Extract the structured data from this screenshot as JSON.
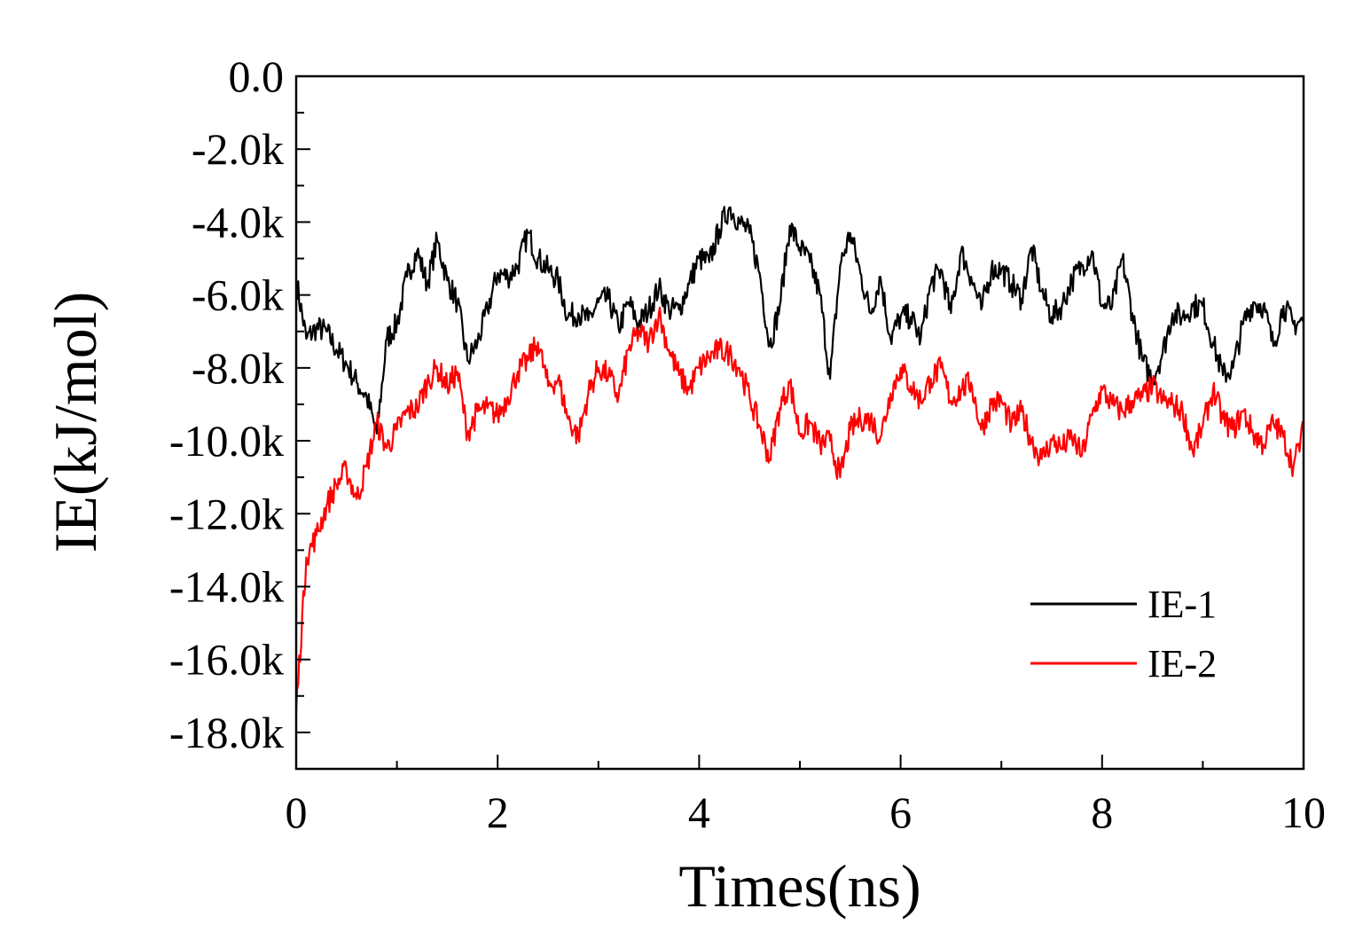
{
  "chart_data": {
    "type": "line",
    "title": "",
    "xlabel": "Times(ns)",
    "ylabel": "IE(kJ/mol)",
    "xlim": [
      0,
      10
    ],
    "ylim": [
      -19000,
      0
    ],
    "x_ticks": [
      0,
      2,
      4,
      6,
      8,
      10
    ],
    "x_tick_labels": [
      "0",
      "2",
      "4",
      "6",
      "8",
      "10"
    ],
    "y_ticks": [
      0,
      -2000,
      -4000,
      -6000,
      -8000,
      -10000,
      -12000,
      -14000,
      -16000,
      -18000
    ],
    "y_tick_labels": [
      "0.0",
      "-2.0k",
      "-4.0k",
      "-6.0k",
      "-8.0k",
      "-10.0k",
      "-12.0k",
      "-14.0k",
      "-16.0k",
      "-18.0k"
    ],
    "grid": false,
    "legend_position": "bottom-right",
    "x": [
      0.0,
      0.1,
      0.2,
      0.3,
      0.4,
      0.5,
      0.6,
      0.7,
      0.8,
      0.9,
      1.0,
      1.1,
      1.2,
      1.3,
      1.4,
      1.5,
      1.6,
      1.7,
      1.8,
      1.9,
      2.0,
      2.1,
      2.2,
      2.3,
      2.4,
      2.5,
      2.6,
      2.7,
      2.8,
      2.9,
      3.0,
      3.1,
      3.2,
      3.3,
      3.4,
      3.5,
      3.6,
      3.7,
      3.8,
      3.9,
      4.0,
      4.1,
      4.2,
      4.3,
      4.4,
      4.5,
      4.6,
      4.7,
      4.8,
      4.9,
      5.0,
      5.1,
      5.2,
      5.3,
      5.4,
      5.5,
      5.6,
      5.7,
      5.8,
      5.9,
      6.0,
      6.1,
      6.2,
      6.3,
      6.4,
      6.5,
      6.6,
      6.7,
      6.8,
      6.9,
      7.0,
      7.1,
      7.2,
      7.3,
      7.4,
      7.5,
      7.6,
      7.7,
      7.8,
      7.9,
      8.0,
      8.1,
      8.2,
      8.3,
      8.4,
      8.5,
      8.6,
      8.7,
      8.8,
      8.9,
      9.0,
      9.1,
      9.2,
      9.3,
      9.4,
      9.5,
      9.6,
      9.7,
      9.8,
      9.9,
      10.0
    ],
    "series": [
      {
        "name": "IE-1",
        "color": "#000000",
        "values": [
          -5600,
          -7200,
          -6900,
          -7000,
          -7500,
          -7900,
          -8400,
          -8800,
          -9800,
          -7200,
          -6800,
          -5500,
          -4800,
          -5700,
          -4500,
          -5600,
          -6200,
          -7800,
          -7300,
          -6400,
          -5400,
          -5500,
          -5200,
          -4300,
          -5000,
          -5300,
          -5600,
          -6600,
          -6500,
          -6700,
          -6200,
          -6100,
          -6900,
          -6200,
          -6800,
          -6400,
          -5800,
          -6400,
          -6400,
          -5700,
          -5000,
          -5100,
          -4200,
          -3600,
          -4000,
          -4300,
          -5400,
          -7400,
          -6300,
          -4100,
          -4700,
          -5100,
          -6000,
          -8300,
          -5200,
          -4300,
          -5400,
          -6500,
          -5500,
          -7200,
          -6600,
          -6600,
          -7200,
          -5700,
          -5300,
          -6500,
          -4800,
          -5500,
          -6400,
          -5300,
          -5300,
          -5700,
          -6100,
          -4700,
          -5900,
          -6600,
          -6300,
          -5600,
          -5200,
          -4800,
          -6300,
          -6300,
          -5000,
          -6500,
          -7800,
          -8300,
          -7600,
          -6500,
          -6600,
          -6300,
          -6300,
          -7300,
          -8200,
          -8000,
          -6800,
          -6200,
          -6300,
          -7400,
          -6300,
          -6800,
          -6700
        ]
      },
      {
        "name": "IE-2",
        "color": "#ff0000",
        "values": [
          -17400,
          -13200,
          -12600,
          -11800,
          -11200,
          -10800,
          -11600,
          -10700,
          -9500,
          -10200,
          -9700,
          -9200,
          -9100,
          -8400,
          -8000,
          -8500,
          -8100,
          -9800,
          -9200,
          -9100,
          -9300,
          -8800,
          -8100,
          -7800,
          -7300,
          -8500,
          -8300,
          -9400,
          -9900,
          -8700,
          -8000,
          -8200,
          -8800,
          -7500,
          -7000,
          -7300,
          -6500,
          -7500,
          -8200,
          -8600,
          -8000,
          -7700,
          -7500,
          -7600,
          -8000,
          -8800,
          -9600,
          -10500,
          -9100,
          -8400,
          -9800,
          -9500,
          -10100,
          -10000,
          -11000,
          -9700,
          -9400,
          -9400,
          -9900,
          -8700,
          -8000,
          -8500,
          -8900,
          -8300,
          -8000,
          -8900,
          -8600,
          -8400,
          -9700,
          -9000,
          -8900,
          -9600,
          -9200,
          -10000,
          -10500,
          -10000,
          -10200,
          -9900,
          -10400,
          -9300,
          -8600,
          -9000,
          -9200,
          -8900,
          -8800,
          -8500,
          -8900,
          -9000,
          -9200,
          -10300,
          -9600,
          -8600,
          -9400,
          -9700,
          -9200,
          -9800,
          -10100,
          -9500,
          -9900,
          -10700,
          -9700
        ]
      }
    ]
  }
}
